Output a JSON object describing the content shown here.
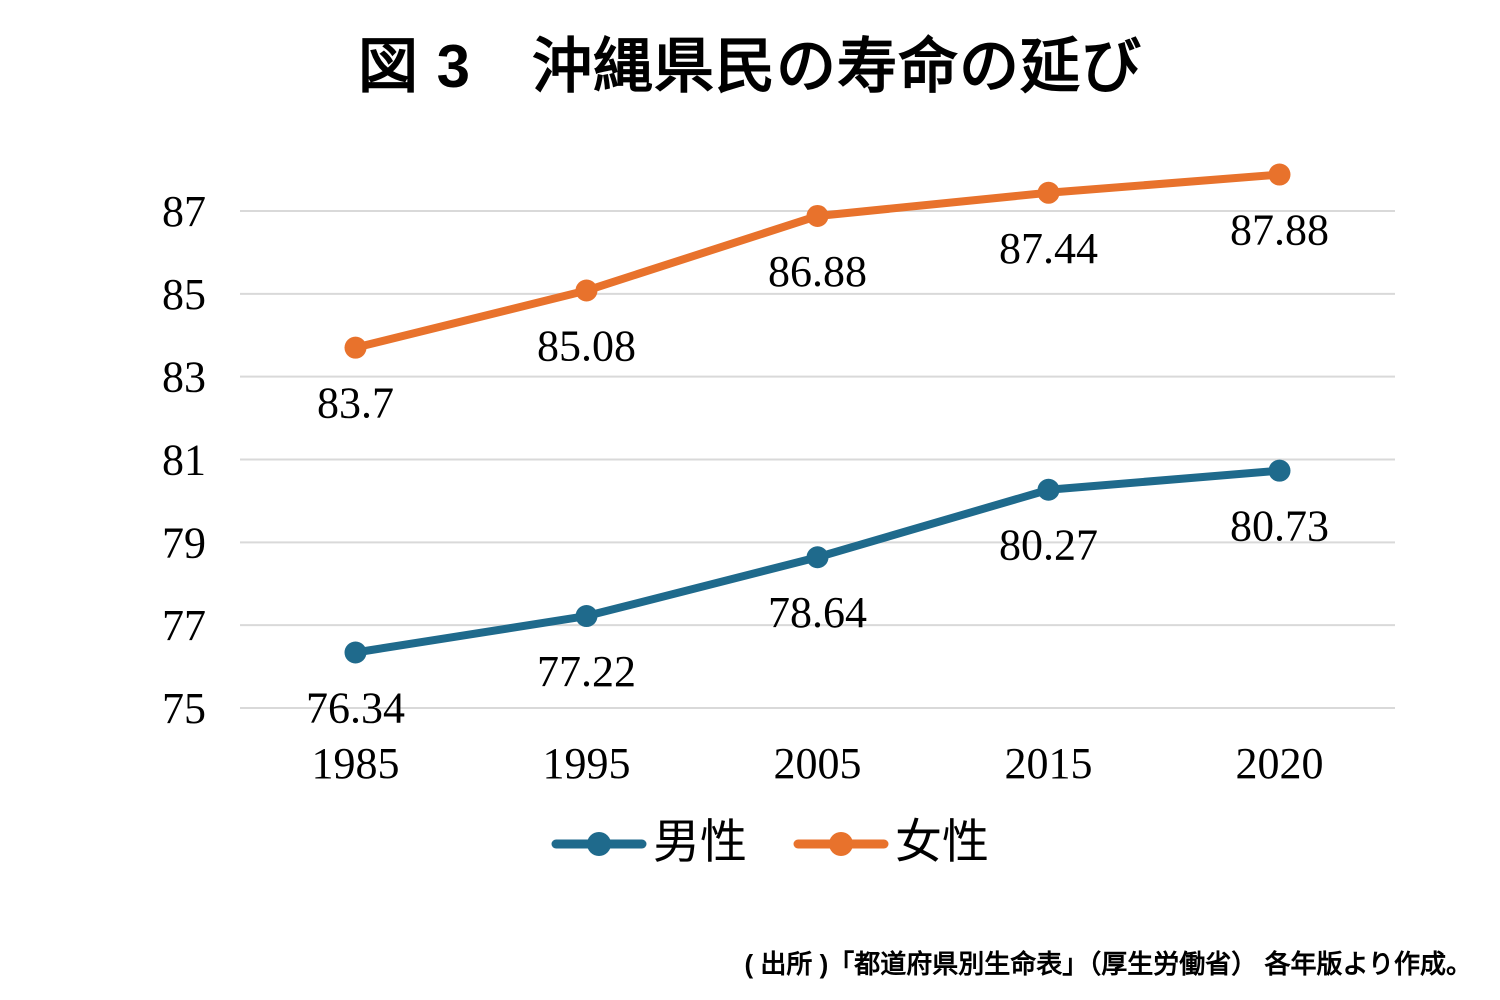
{
  "title": "図 3　沖縄県民の寿命の延び",
  "source_note": "( 出所 )「都道府県別生命表」（厚生労働省） 各年版より作成。",
  "colors": {
    "male": "#1F6A8C",
    "female": "#E8722C",
    "gridline": "#D9D9D9",
    "text": "#000000",
    "background": "#FFFFFF"
  },
  "chart_data": {
    "type": "line",
    "title": "図 3　沖縄県民の寿命の延び",
    "categories": [
      "1985",
      "1995",
      "2005",
      "2015",
      "2020"
    ],
    "series": [
      {
        "key": "male",
        "name": "男性",
        "color": "#1F6A8C",
        "values": [
          76.34,
          77.22,
          78.64,
          80.27,
          80.73
        ],
        "labels": [
          "76.34",
          "77.22",
          "78.64",
          "80.27",
          "80.73"
        ]
      },
      {
        "key": "female",
        "name": "女性",
        "color": "#E8722C",
        "values": [
          83.7,
          85.08,
          86.88,
          87.44,
          87.88
        ],
        "labels": [
          "83.7",
          "85.08",
          "86.88",
          "87.44",
          "87.88"
        ]
      }
    ],
    "xlabel": "",
    "ylabel": "",
    "y_ticks": [
      75,
      77,
      79,
      81,
      83,
      85,
      87
    ],
    "ylim": [
      75,
      88
    ],
    "grid": true,
    "marker": "circle",
    "legend_position": "bottom"
  }
}
